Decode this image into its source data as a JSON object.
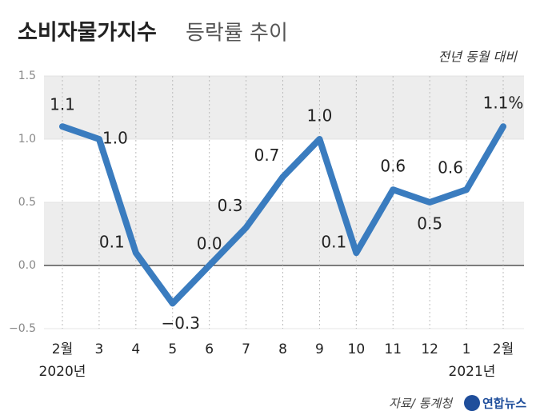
{
  "chart_data": {
    "type": "line",
    "title": "소비자물가지수",
    "title_light": "등락률 추이",
    "subtitle": "전년 동월 대비",
    "categories": [
      "2월",
      "3",
      "4",
      "5",
      "6",
      "7",
      "8",
      "9",
      "10",
      "11",
      "12",
      "1",
      "2월"
    ],
    "x_group_labels": [
      "2020년",
      "2021년"
    ],
    "values": [
      1.1,
      1.0,
      0.1,
      -0.3,
      0.0,
      0.3,
      0.7,
      1.0,
      0.1,
      0.6,
      0.5,
      0.6,
      1.1
    ],
    "value_labels": [
      "1.1",
      "1.0",
      "0.1",
      "−0.3",
      "0.0",
      "0.3",
      "0.7",
      "1.0",
      "0.1",
      "0.6",
      "0.5",
      "0.6",
      "1.1%"
    ],
    "color": "#3a7cbf",
    "ylim": [
      -0.5,
      1.5
    ],
    "yticks": [
      {
        "value": -0.5,
        "label": "−0.5"
      },
      {
        "value": 0,
        "label": "0.0"
      },
      0.5,
      {
        "value": 1,
        "label": "1.0"
      },
      1.5
    ],
    "grid": true,
    "source": "자료/ 통계청",
    "logo": "연합뉴스"
  }
}
